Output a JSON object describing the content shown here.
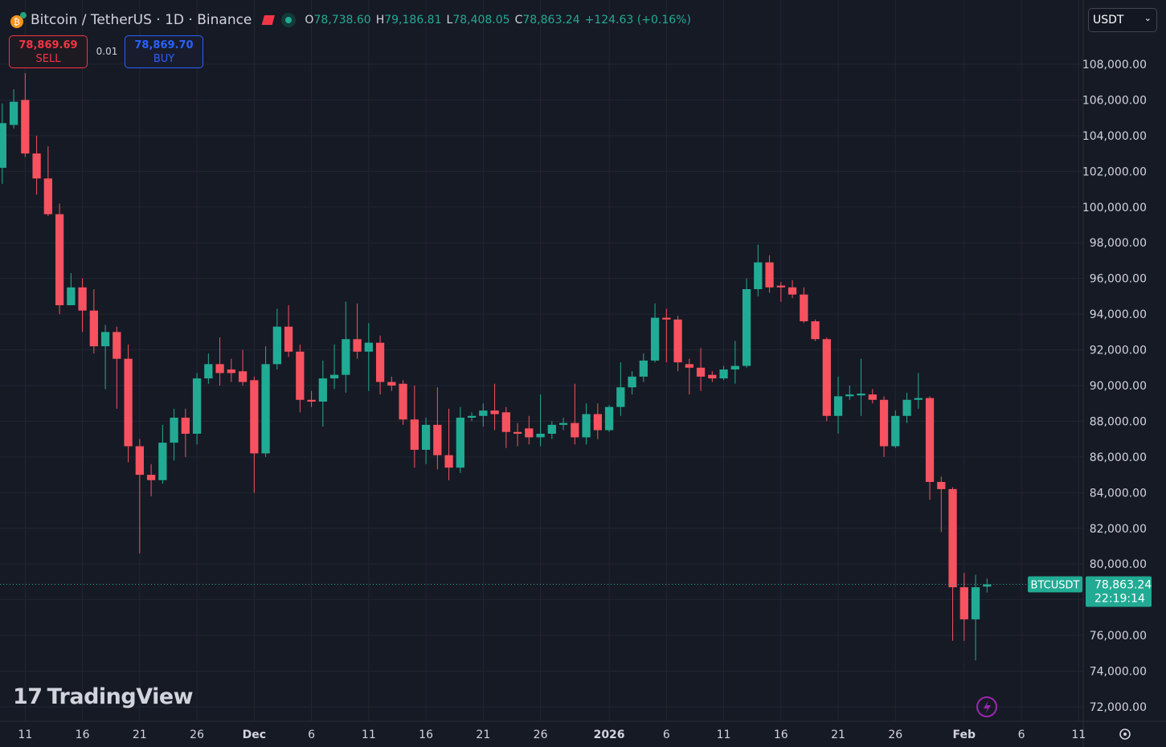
{
  "header": {
    "symbol": "Bitcoin / TetherUS · 1D · Binance",
    "ohlc": [
      {
        "key": "O",
        "value": "78,738.60"
      },
      {
        "key": "H",
        "value": "79,186.81"
      },
      {
        "key": "L",
        "value": "78,408.05"
      },
      {
        "key": "C",
        "value": "78,863.24"
      }
    ],
    "change": "+124.63 (+0.16%)"
  },
  "trade": {
    "sell_price": "78,869.69",
    "sell_label": "SELL",
    "quantity": "0.01",
    "buy_price": "78,869.70",
    "buy_label": "BUY"
  },
  "currency": "USDT",
  "watermark": "TradingView",
  "chart_data": {
    "type": "candlestick",
    "up_color": "#22ab94",
    "down_color": "#f7525f",
    "grid": true,
    "open": [
      102200,
      104600,
      106000,
      103000,
      101600,
      99600,
      94500,
      95500,
      94200,
      92200,
      93000,
      91500,
      86600,
      85000,
      84700,
      86800,
      88200,
      87300,
      90400,
      91200,
      90900,
      90800,
      90300,
      86200,
      91200,
      93300,
      91900,
      89200,
      89100,
      90400,
      90600,
      92600,
      91900,
      92400,
      90200,
      90100,
      88100,
      86400,
      87800,
      86100,
      85400,
      88200,
      88300,
      88600,
      88500,
      87400,
      87600,
      87100,
      87300,
      87800,
      87900,
      87100,
      88400,
      87500,
      88800,
      89900,
      90500,
      91400,
      93800,
      93700,
      91200,
      91000,
      90600,
      90400,
      90900,
      91100,
      95400,
      96900,
      95600,
      95500,
      95100,
      93600,
      92600,
      88300,
      89400,
      89450,
      89500,
      89200,
      86600,
      88300,
      89200,
      89300,
      84600,
      84200,
      78700,
      76900,
      78738.6
    ],
    "high": [
      105800,
      106600,
      107500,
      104000,
      103400,
      100200,
      96300,
      96000,
      95400,
      93400,
      93300,
      92300,
      87000,
      85600,
      87800,
      88700,
      88700,
      90700,
      91800,
      92700,
      91500,
      92000,
      90500,
      92200,
      94300,
      94500,
      92300,
      89700,
      91400,
      92300,
      94700,
      94600,
      93500,
      92800,
      90500,
      90300,
      90000,
      88200,
      89900,
      88700,
      88800,
      88500,
      89000,
      90100,
      88800,
      87900,
      88300,
      89500,
      88000,
      88200,
      90100,
      89000,
      89000,
      88900,
      91300,
      90800,
      91800,
      94600,
      94300,
      93900,
      91500,
      92100,
      90800,
      91100,
      92500,
      96000,
      97900,
      97300,
      95800,
      95900,
      95500,
      93700,
      92700,
      90500,
      90000,
      91500,
      89800,
      89400,
      88600,
      89600,
      90700,
      89400,
      84900,
      84300,
      79500,
      79400,
      79186.81
    ],
    "low": [
      101300,
      104400,
      102800,
      100700,
      99500,
      94000,
      94500,
      93000,
      91800,
      89800,
      88700,
      85700,
      80600,
      83800,
      84500,
      85800,
      86000,
      86700,
      90100,
      90000,
      90200,
      90000,
      84000,
      86000,
      90900,
      91600,
      88500,
      88800,
      87700,
      89800,
      89600,
      91500,
      89700,
      89500,
      89700,
      87800,
      85400,
      85600,
      85300,
      84700,
      85100,
      88000,
      87700,
      87500,
      86500,
      86600,
      86700,
      86600,
      87000,
      87500,
      86700,
      86700,
      87000,
      87400,
      88300,
      89500,
      90200,
      91300,
      91300,
      90800,
      89500,
      89700,
      90200,
      90300,
      90100,
      91000,
      95000,
      95200,
      94700,
      94900,
      93500,
      92500,
      88000,
      87300,
      89200,
      88300,
      89000,
      86000,
      86500,
      87900,
      88700,
      83600,
      81800,
      75700,
      75700,
      74600,
      78408.05
    ],
    "close": [
      104700,
      105900,
      103000,
      101600,
      99600,
      94500,
      95500,
      94200,
      92200,
      93000,
      91500,
      86600,
      85000,
      84700,
      86800,
      88200,
      87300,
      90400,
      91200,
      90700,
      90700,
      90200,
      86200,
      91200,
      93300,
      91900,
      89200,
      89100,
      90400,
      90600,
      92600,
      91900,
      92400,
      90200,
      90000,
      88100,
      86400,
      87800,
      86100,
      85400,
      88200,
      88300,
      88600,
      88400,
      87400,
      87300,
      87100,
      87300,
      87800,
      87900,
      87100,
      88400,
      87500,
      88800,
      89900,
      90500,
      91400,
      93800,
      93700,
      91300,
      91000,
      90500,
      90400,
      90900,
      91100,
      95400,
      96900,
      95500,
      95500,
      95100,
      93600,
      92600,
      88300,
      89400,
      89500,
      89550,
      89200,
      86600,
      88300,
      89200,
      89300,
      84600,
      84200,
      78700,
      76900,
      78700,
      78863.24
    ],
    "last_price": {
      "symbol": "BTCUSDT",
      "label": "78,863.24",
      "countdown": "22:19:14"
    },
    "xlim": [
      -0.2,
      94.4
    ],
    "xticks": [
      {
        "value": 2,
        "label": "11"
      },
      {
        "value": 7,
        "label": "16"
      },
      {
        "value": 12,
        "label": "21"
      },
      {
        "value": 17,
        "label": "26"
      },
      {
        "value": 22,
        "label": "Dec"
      },
      {
        "value": 27,
        "label": "6"
      },
      {
        "value": 32,
        "label": "11"
      },
      {
        "value": 37,
        "label": "16"
      },
      {
        "value": 42,
        "label": "21"
      },
      {
        "value": 47,
        "label": "26"
      },
      {
        "value": 53,
        "label": "2026"
      },
      {
        "value": 58,
        "label": "6"
      },
      {
        "value": 63,
        "label": "11"
      },
      {
        "value": 68,
        "label": "16"
      },
      {
        "value": 73,
        "label": "21"
      },
      {
        "value": 78,
        "label": "26"
      },
      {
        "value": 84,
        "label": "Feb"
      },
      {
        "value": 89,
        "label": "6"
      },
      {
        "value": 94,
        "label": "11"
      }
    ],
    "ylim": [
      71190,
      111600
    ],
    "yticks": [
      {
        "value": 72000,
        "label": "72,000.00"
      },
      {
        "value": 74000,
        "label": "74,000.00"
      },
      {
        "value": 76000,
        "label": "76,000.00"
      },
      {
        "value": 78000,
        "label": "78,000.00"
      },
      {
        "value": 80000,
        "label": "80,000.00"
      },
      {
        "value": 82000,
        "label": "82,000.00"
      },
      {
        "value": 84000,
        "label": "84,000.00"
      },
      {
        "value": 86000,
        "label": "86,000.00"
      },
      {
        "value": 88000,
        "label": "88,000.00"
      },
      {
        "value": 90000,
        "label": "90,000.00"
      },
      {
        "value": 92000,
        "label": "92,000.00"
      },
      {
        "value": 94000,
        "label": "94,000.00"
      },
      {
        "value": 96000,
        "label": "96,000.00"
      },
      {
        "value": 98000,
        "label": "98,000.00"
      },
      {
        "value": 100000,
        "label": "100,000.00"
      },
      {
        "value": 102000,
        "label": "102,000.00"
      },
      {
        "value": 104000,
        "label": "104,000.00"
      },
      {
        "value": 106000,
        "label": "106,000.00"
      },
      {
        "value": 108000,
        "label": "108,000.00"
      }
    ]
  }
}
